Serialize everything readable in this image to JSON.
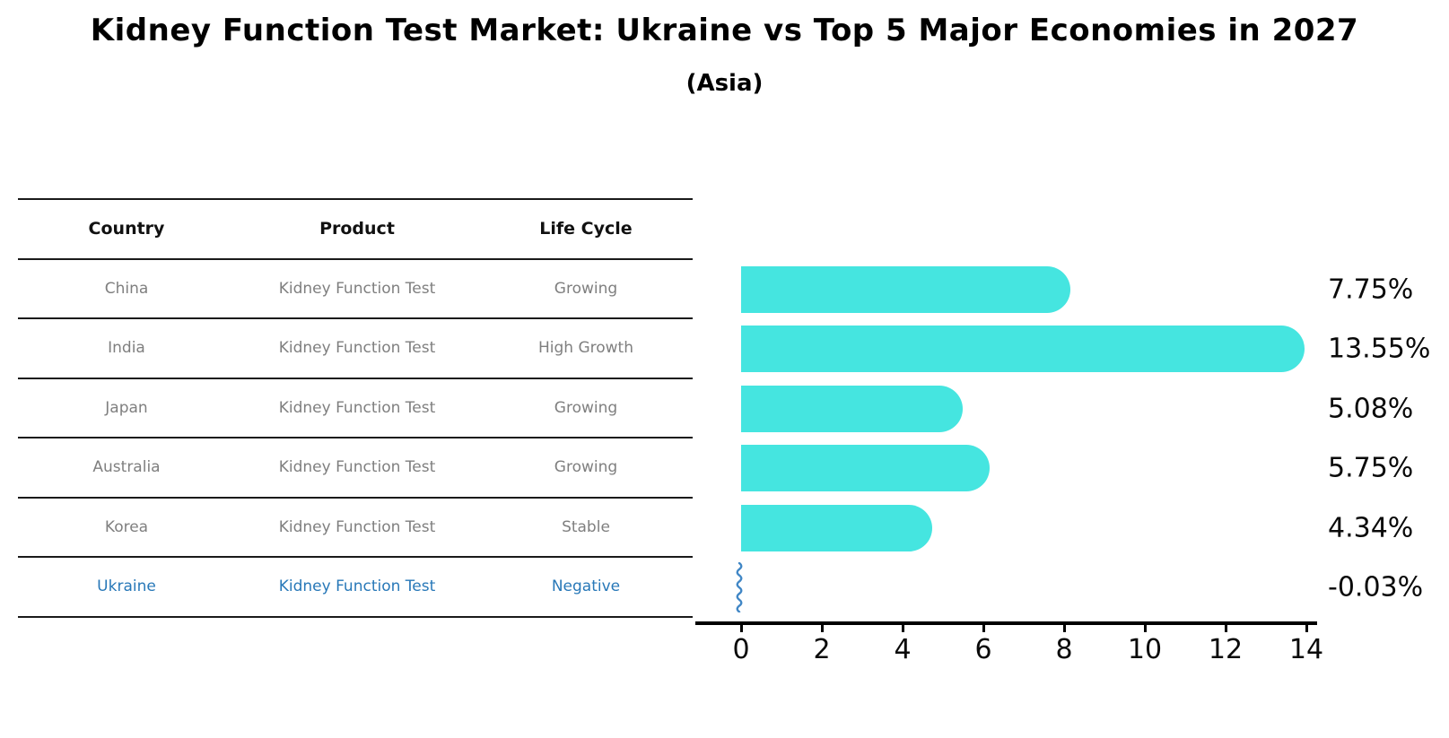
{
  "title": "Kidney Function Test Market: Ukraine vs Top 5 Major Economies in 2027",
  "subtitle": "(Asia)",
  "table": {
    "columns": [
      "Country",
      "Product",
      "Life Cycle"
    ],
    "rows": [
      {
        "country": "China",
        "product": "Kidney Function Test",
        "life_cycle": "Growing",
        "highlighted": false
      },
      {
        "country": "India",
        "product": "Kidney Function Test",
        "life_cycle": "High Growth",
        "highlighted": false
      },
      {
        "country": "Japan",
        "product": "Kidney Function Test",
        "life_cycle": "Growing",
        "highlighted": false
      },
      {
        "country": "Australia",
        "product": "Kidney Function Test",
        "life_cycle": "Growing",
        "highlighted": false
      },
      {
        "country": "Korea",
        "product": "Kidney Function Test",
        "life_cycle": "Stable",
        "highlighted": false
      },
      {
        "country": "Ukraine",
        "product": "Kidney Function Test",
        "life_cycle": "Negative",
        "highlighted": true
      }
    ]
  },
  "chart_data": {
    "type": "bar",
    "orientation": "horizontal",
    "title": "Kidney Function Test Market: Ukraine vs Top 5 Major Economies in 2027 (Asia)",
    "categories": [
      "China",
      "India",
      "Japan",
      "Australia",
      "Korea",
      "Ukraine"
    ],
    "values": [
      7.75,
      13.55,
      5.08,
      5.75,
      4.34,
      -0.03
    ],
    "value_labels": [
      "7.75%",
      "13.55%",
      "5.08%",
      "5.75%",
      "4.34%",
      "-0.03%"
    ],
    "xlim": [
      0,
      14
    ],
    "x_ticks": [
      0,
      2,
      4,
      6,
      8,
      10,
      12,
      14
    ],
    "grid": false,
    "legend": false,
    "negative_rendered_as": "blue-squiggle-at-zero"
  },
  "colors": {
    "bar": "#45e5e0",
    "highlight_text": "#2878b8",
    "negative_marker": "#4187c6",
    "table_text": "#7f7f7f",
    "header_text": "#111111",
    "axis": "#000000"
  }
}
